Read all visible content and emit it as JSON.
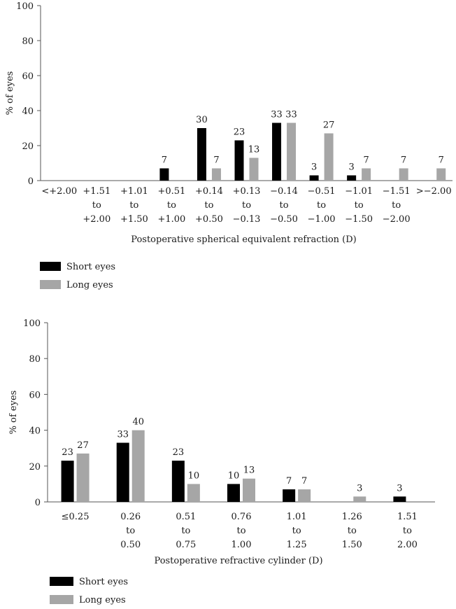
{
  "colors": {
    "short": "#000000",
    "long": "#a6a6a6",
    "axis": "#555555"
  },
  "chart_data": [
    {
      "type": "bar",
      "title": "",
      "xlabel": "Postoperative spherical equivalent refraction (D)",
      "ylabel": "% of eyes",
      "ylim": [
        0,
        100
      ],
      "yticks": [
        "0",
        "20",
        "40",
        "60",
        "80",
        "100"
      ],
      "grid": false,
      "legend_position": "bottom-left",
      "categories": [
        [
          "<+2.00"
        ],
        [
          "+1.51",
          "to",
          "+2.00"
        ],
        [
          "+1.01",
          "to",
          "+1.50"
        ],
        [
          "+0.51",
          "to",
          "+1.00"
        ],
        [
          "+0.14",
          "to",
          "+0.50"
        ],
        [
          "+0.13",
          "to",
          "−0.13"
        ],
        [
          "−0.14",
          "to",
          "−0.50"
        ],
        [
          "−0.51",
          "to",
          "−1.00"
        ],
        [
          "−1.01",
          "to",
          "−1.50"
        ],
        [
          "−1.51",
          "to",
          "−2.00"
        ],
        [
          ">−2.00"
        ]
      ],
      "series": [
        {
          "name": "Short eyes",
          "values": [
            0,
            0,
            0,
            7,
            30,
            23,
            33,
            3,
            3,
            0,
            0
          ],
          "labels": [
            "",
            "",
            "",
            "7",
            "30",
            "23",
            "33",
            "3",
            "3",
            "",
            ""
          ]
        },
        {
          "name": "Long eyes",
          "values": [
            0,
            0,
            0,
            0,
            7,
            13,
            33,
            27,
            7,
            7,
            7
          ],
          "labels": [
            "",
            "",
            "",
            "",
            "7",
            "13",
            "33",
            "27",
            "7",
            "7",
            "7"
          ]
        }
      ]
    },
    {
      "type": "bar",
      "title": "",
      "xlabel": "Postoperative refractive cylinder (D)",
      "ylabel": "% of eyes",
      "ylim": [
        0,
        100
      ],
      "yticks": [
        "0",
        "20",
        "40",
        "60",
        "80",
        "100"
      ],
      "grid": false,
      "legend_position": "bottom-left",
      "categories": [
        [
          "≤0.25"
        ],
        [
          "0.26",
          "to",
          "0.50"
        ],
        [
          "0.51",
          "to",
          "0.75"
        ],
        [
          "0.76",
          "to",
          "1.00"
        ],
        [
          "1.01",
          "to",
          "1.25"
        ],
        [
          "1.26",
          "to",
          "1.50"
        ],
        [
          "1.51",
          "to",
          "2.00"
        ]
      ],
      "series": [
        {
          "name": "Short eyes",
          "values": [
            23,
            33,
            23,
            10,
            7,
            0,
            3
          ],
          "labels": [
            "23",
            "33",
            "23",
            "10",
            "7",
            "",
            "3"
          ]
        },
        {
          "name": "Long eyes",
          "values": [
            27,
            40,
            10,
            13,
            7,
            3,
            0
          ],
          "labels": [
            "27",
            "40",
            "10",
            "13",
            "7",
            "3",
            ""
          ]
        }
      ]
    }
  ]
}
